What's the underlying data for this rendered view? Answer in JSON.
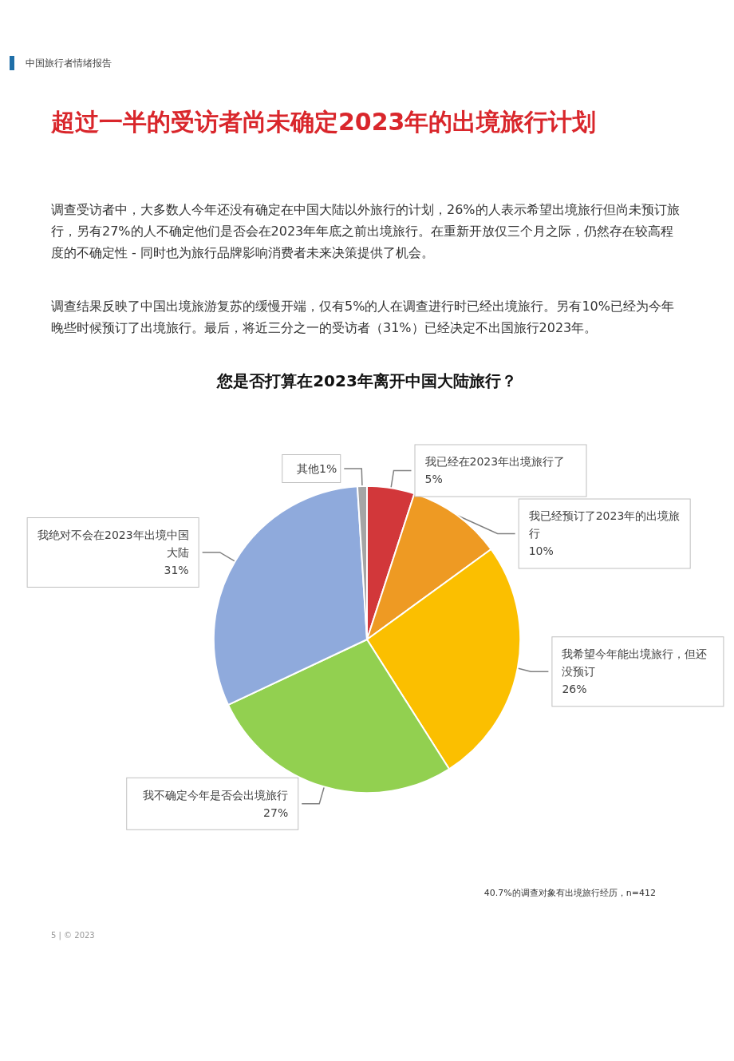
{
  "chart_data": {
    "type": "pie",
    "title": "您是否打算在2023年离开中国大陆旅行？",
    "subtitle": "中国旅行者情绪报告",
    "categories": [
      "我已经在2023年出境旅行了",
      "我已经预订了2023年的出境旅行",
      "我希望今年能出境旅行，但还没预订",
      "我不确定今年是否会出境旅行",
      "我绝对不会在2023年出境中国大陆",
      "其他"
    ],
    "values": [
      5,
      10,
      26,
      27,
      31,
      1
    ],
    "value_labels": [
      "5%",
      "10%",
      "26%",
      "27%",
      "31%",
      "1%"
    ],
    "colors": [
      "#d2373a",
      "#ee9a23",
      "#fbbf00",
      "#92d050",
      "#8faadc",
      "#a5a5a5"
    ],
    "legend": false,
    "annotations": [
      "超过一半的受访者尚未确定2023年的出境旅行计划",
      "调查受访者中，大多数人今年还没有确定在中国大陆以外旅行的计划，26%的人表示希望出境旅行但尚未预订旅行，另有27%的人不确定他们是否会在2023年年底之前出境旅行。在重新开放仅三个月之际，仍然存在较高程度的不确定性 - 同时也为旅行品牌影响消费者未来决策提供了机会。",
      "调查结果反映了中国出境旅游复苏的缓慢开端，仅有5%的人在调查进行时已经出境旅行。另有10%已经为今年晚些时候预订了出境旅行。最后，将近三分之一的受访者（31%）已经决定不出国旅行2023年。",
      "40.7%的调查对象有出境旅行经历，n=412",
      "5 | © 2023"
    ]
  }
}
